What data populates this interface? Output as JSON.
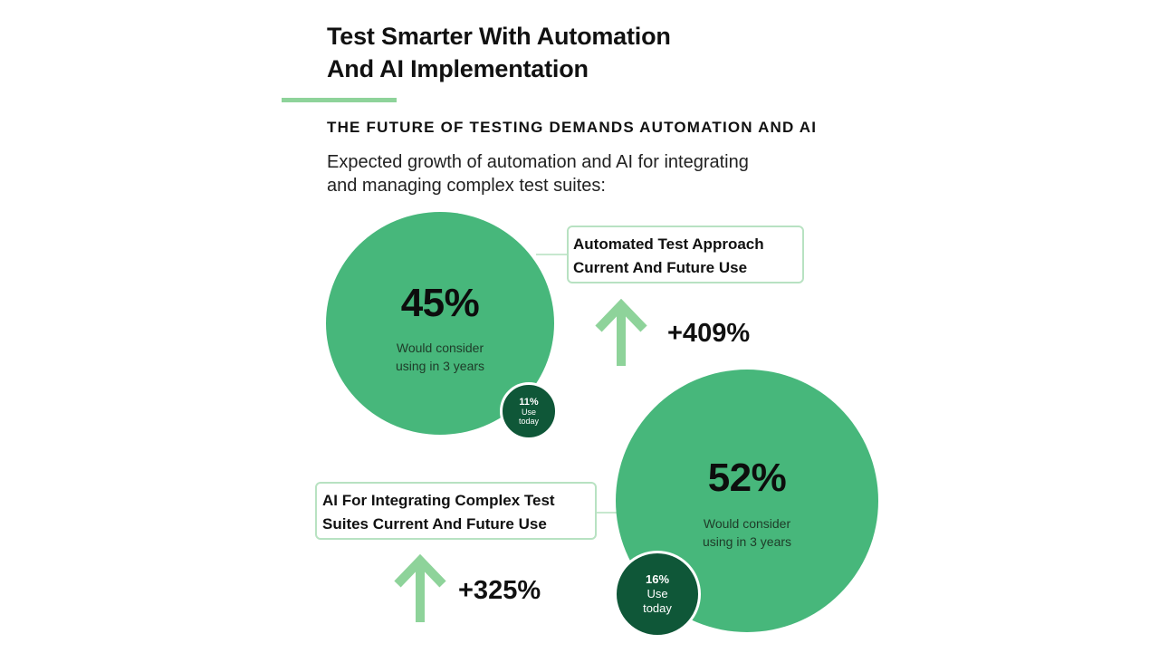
{
  "header": {
    "title_line1": "Test Smarter With Automation",
    "title_line2": "And AI Implementation",
    "subtitle": "THE FUTURE OF TESTING DEMANDS AUTOMATION AND AI",
    "intro_line1": "Expected growth of automation and AI for integrating",
    "intro_line2": "and managing complex test suites:"
  },
  "stats": [
    {
      "label_line1": "Automated Test Approach",
      "label_line2": "Current And Future Use",
      "future_pct": "45%",
      "future_desc_line1": "Would consider",
      "future_desc_line2": "using in 3 years",
      "current_pct": "11%",
      "current_label_line1": "Use",
      "current_label_line2": "today",
      "growth": "+409%"
    },
    {
      "label_line1": "AI For Integrating Complex Test",
      "label_line2": "Suites Current And Future Use",
      "future_pct": "52%",
      "future_desc_line1": "Would consider",
      "future_desc_line2": "using in 3 years",
      "current_pct": "16%",
      "current_label_line1": "Use",
      "current_label_line2": "today",
      "growth": "+325%"
    }
  ],
  "icons": {
    "growth_arrow": "arrow-up-icon"
  },
  "colors": {
    "future_circle": "#47b77b",
    "current_circle": "#0f5738",
    "accent": "#8ed39a",
    "arrow": "#8ed39a",
    "box_border": "#b8e2c2"
  }
}
